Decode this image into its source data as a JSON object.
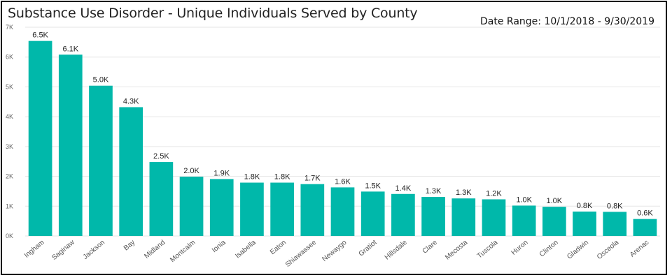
{
  "header": {
    "title": "Substance Use Disorder - Unique Individuals Served by County",
    "date_range": "Date Range: 10/1/2018 - 9/30/2019"
  },
  "colors": {
    "bar": "#00B8AA",
    "grid": "#E6E6E6"
  },
  "chart_data": {
    "type": "bar",
    "title": "Substance Use Disorder - Unique Individuals Served by County",
    "xlabel": "",
    "ylabel": "",
    "ylim": [
      0,
      7000
    ],
    "yticks": [
      0,
      1000,
      2000,
      3000,
      4000,
      5000,
      6000,
      7000
    ],
    "ytick_labels": [
      "0K",
      "1K",
      "2K",
      "3K",
      "4K",
      "5K",
      "6K",
      "7K"
    ],
    "grid": true,
    "categories": [
      "Ingham",
      "Saginaw",
      "Jackson",
      "Bay",
      "Midland",
      "Montcalm",
      "Ionia",
      "Isabella",
      "Eaton",
      "Shiawassee",
      "Newaygo",
      "Gratiot",
      "Hillsdale",
      "Clare",
      "Mecosta",
      "Tuscola",
      "Huron",
      "Clinton",
      "Gladwin",
      "Osceola",
      "Arenac"
    ],
    "values": [
      6540,
      6080,
      5040,
      4320,
      2480,
      1990,
      1910,
      1790,
      1790,
      1740,
      1630,
      1490,
      1410,
      1310,
      1260,
      1230,
      1020,
      980,
      820,
      810,
      570
    ],
    "data_labels": [
      "6.5K",
      "6.1K",
      "5.0K",
      "4.3K",
      "2.5K",
      "2.0K",
      "1.9K",
      "1.8K",
      "1.8K",
      "1.7K",
      "1.6K",
      "1.5K",
      "1.4K",
      "1.3K",
      "1.3K",
      "1.2K",
      "1.0K",
      "1.0K",
      "0.8K",
      "0.8K",
      "0.6K"
    ]
  }
}
